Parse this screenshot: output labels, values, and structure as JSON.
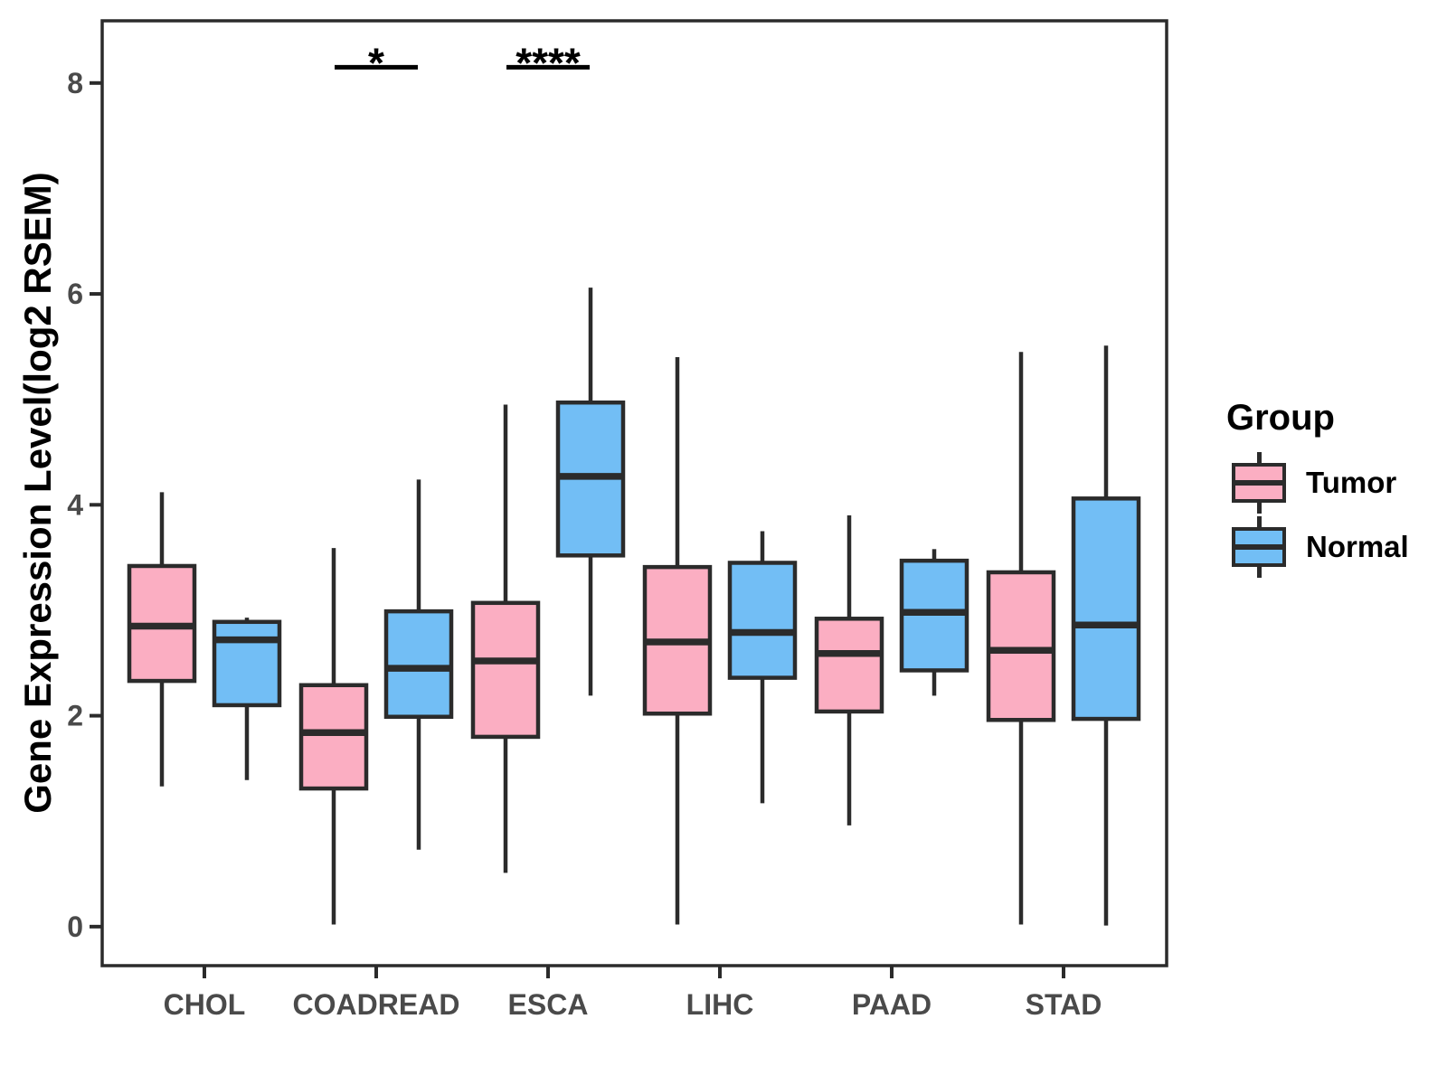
{
  "chart_data": {
    "type": "boxplot",
    "title": "",
    "ylabel": "Gene Expression Level(log2 RSEM)",
    "xlabel": "",
    "ylim": [
      -0.37,
      8.59
    ],
    "yticks": [
      0,
      2,
      4,
      6,
      8
    ],
    "categories": [
      "CHOL",
      "COADREAD",
      "ESCA",
      "LIHC",
      "PAAD",
      "STAD"
    ],
    "grid": false,
    "legend_position": "right",
    "series": [
      {
        "name": "Tumor",
        "color": "#FBAEC2",
        "boxes": [
          {
            "category": "CHOL",
            "whislo": 1.33,
            "q1": 2.33,
            "med": 2.85,
            "q3": 3.42,
            "whishi": 4.12
          },
          {
            "category": "COADREAD",
            "whislo": 0.02,
            "q1": 1.31,
            "med": 1.84,
            "q3": 2.29,
            "whishi": 3.59
          },
          {
            "category": "ESCA",
            "whislo": 0.51,
            "q1": 1.8,
            "med": 2.52,
            "q3": 3.07,
            "whishi": 4.95
          },
          {
            "category": "LIHC",
            "whislo": 0.02,
            "q1": 2.02,
            "med": 2.7,
            "q3": 3.41,
            "whishi": 5.4
          },
          {
            "category": "PAAD",
            "whislo": 0.96,
            "q1": 2.04,
            "med": 2.59,
            "q3": 2.92,
            "whishi": 3.9
          },
          {
            "category": "STAD",
            "whislo": 0.02,
            "q1": 1.96,
            "med": 2.62,
            "q3": 3.36,
            "whishi": 5.45
          }
        ]
      },
      {
        "name": "Normal",
        "color": "#72BEF5",
        "boxes": [
          {
            "category": "CHOL",
            "whislo": 1.39,
            "q1": 2.1,
            "med": 2.72,
            "q3": 2.89,
            "whishi": 2.93
          },
          {
            "category": "COADREAD",
            "whislo": 0.73,
            "q1": 1.99,
            "med": 2.45,
            "q3": 2.99,
            "whishi": 4.24
          },
          {
            "category": "ESCA",
            "whislo": 2.19,
            "q1": 3.52,
            "med": 4.27,
            "q3": 4.97,
            "whishi": 6.06
          },
          {
            "category": "LIHC",
            "whislo": 1.17,
            "q1": 2.36,
            "med": 2.79,
            "q3": 3.45,
            "whishi": 3.75
          },
          {
            "category": "PAAD",
            "whislo": 2.19,
            "q1": 2.43,
            "med": 2.98,
            "q3": 3.47,
            "whishi": 3.58
          },
          {
            "category": "STAD",
            "whislo": 0.01,
            "q1": 1.97,
            "med": 2.86,
            "q3": 4.06,
            "whishi": 5.51
          }
        ]
      }
    ],
    "annotations": [
      {
        "category": "COADREAD",
        "label": "*",
        "y": 8.15
      },
      {
        "category": "ESCA",
        "label": "****",
        "y": 8.15
      }
    ],
    "legend": {
      "title": "Group",
      "items": [
        {
          "label": "Tumor",
          "color": "#FBAEC2"
        },
        {
          "label": "Normal",
          "color": "#72BEF5"
        }
      ]
    },
    "colors": {
      "box_border": "#2B2B2B",
      "axis_line": "#2B2B2B",
      "axis_text": "#4A4A4A",
      "annotation": "#000000",
      "background": "#FFFFFF"
    }
  }
}
